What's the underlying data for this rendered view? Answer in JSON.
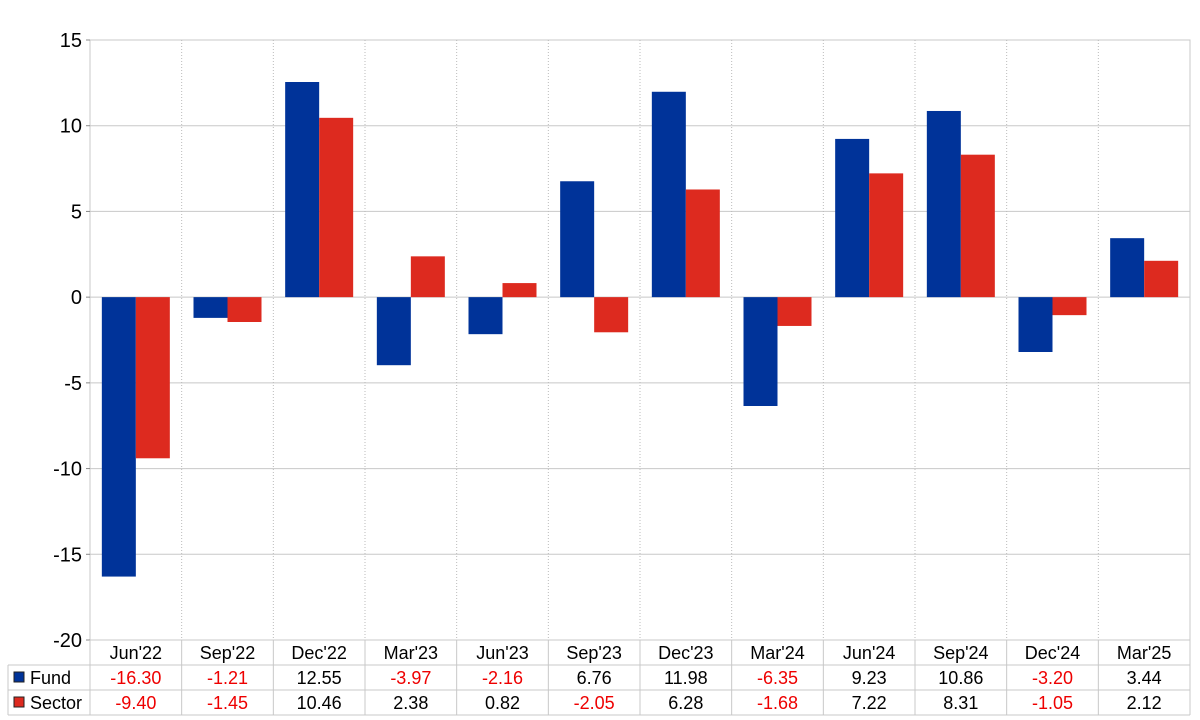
{
  "chart_data": {
    "type": "bar",
    "title": "",
    "xlabel": "",
    "ylabel": "",
    "ylim": [
      -20,
      15
    ],
    "yticks": [
      15,
      10,
      5,
      0,
      -5,
      -10,
      -15,
      -20
    ],
    "grid": true,
    "legend": "table-bottom",
    "categories": [
      "Jun'22",
      "Sep'22",
      "Dec'22",
      "Mar'23",
      "Jun'23",
      "Sep'23",
      "Dec'23",
      "Mar'24",
      "Jun'24",
      "Sep'24",
      "Dec'24",
      "Mar'25"
    ],
    "series": [
      {
        "name": "Fund",
        "color": "#003399",
        "values": [
          -16.3,
          -1.21,
          12.55,
          -3.97,
          -2.16,
          6.76,
          11.98,
          -6.35,
          9.23,
          10.86,
          -3.2,
          3.44
        ],
        "labels": [
          "-16.30",
          "-1.21",
          "12.55",
          "-3.97",
          "-2.16",
          "6.76",
          "11.98",
          "-6.35",
          "9.23",
          "10.86",
          "-3.20",
          "3.44"
        ]
      },
      {
        "name": "Sector",
        "color": "#dd2a1f",
        "values": [
          -9.4,
          -1.45,
          10.46,
          2.38,
          0.82,
          -2.05,
          6.28,
          -1.68,
          7.22,
          8.31,
          -1.05,
          2.12
        ],
        "labels": [
          "-9.40",
          "-1.45",
          "10.46",
          "2.38",
          "0.82",
          "-2.05",
          "6.28",
          "-1.68",
          "7.22",
          "8.31",
          "-1.05",
          "2.12"
        ]
      }
    ],
    "negative_value_color": "#ee0000",
    "positive_value_color": "#000000"
  }
}
